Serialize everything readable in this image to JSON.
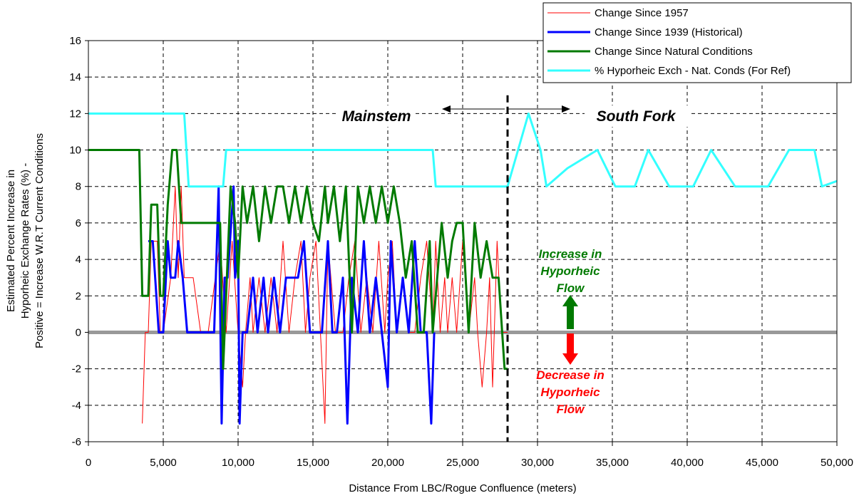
{
  "chart_data": {
    "type": "line",
    "xlabel": "Distance From LBC/Rogue Confluence (meters)",
    "ylabel_lines": [
      "Estimated Percent Increase in",
      "Hyporheic Exchange Rates (%) -",
      "Positive = Increase W.R.T Current Conditions"
    ],
    "xlim": [
      0,
      50000
    ],
    "ylim": [
      -6,
      16
    ],
    "x_ticks": [
      0,
      5000,
      10000,
      15000,
      20000,
      25000,
      30000,
      35000,
      40000,
      45000,
      50000
    ],
    "x_tick_labels": [
      "0",
      "5,000",
      "10,000",
      "15,000",
      "20,000",
      "25,000",
      "30,000",
      "35,000",
      "40,000",
      "45,000",
      "50,000"
    ],
    "y_ticks": [
      -6,
      -4,
      -2,
      0,
      2,
      4,
      6,
      8,
      10,
      12,
      14,
      16
    ],
    "y_tick_labels": [
      "-6",
      "-4",
      "-2",
      "0",
      "2",
      "4",
      "6",
      "8",
      "10",
      "12",
      "14",
      "16"
    ],
    "grid": true,
    "legend_position": "top-right",
    "zero_line_color": "#999999",
    "divider": {
      "x": 28000
    },
    "annotations": {
      "mainstem": "Mainstem",
      "south_fork": "South Fork",
      "increase": [
        "Increase in",
        "Hyporheic",
        "Flow"
      ],
      "decrease": [
        "Decrease in",
        "Hyporheic",
        "Flow"
      ],
      "increase_color": "#007a00",
      "decrease_color": "#ff0000"
    },
    "series": [
      {
        "name": "Change Since 1957",
        "color": "#ff0000",
        "width": 1,
        "x": [
          3600,
          3800,
          4000,
          4200,
          4600,
          4800,
          5000,
          5500,
          5800,
          6000,
          6200,
          6400,
          6700,
          7000,
          7500,
          7800,
          8000,
          8800,
          9200,
          9600,
          10000,
          10300,
          10500,
          10800,
          11000,
          11400,
          11800,
          12200,
          12600,
          13000,
          13400,
          13800,
          14200,
          14500,
          14800,
          15200,
          15500,
          15800,
          16000,
          16500,
          17000,
          17400,
          17800,
          18200,
          18600,
          19000,
          19400,
          19800,
          20000,
          20300,
          20600,
          21000,
          21400,
          21800,
          22200,
          22600,
          23000,
          23200,
          23500,
          23800,
          24000,
          24300,
          24600,
          25000,
          25400,
          25800,
          26000,
          26300,
          26600,
          26800,
          27000,
          27300,
          27600,
          28000
        ],
        "y": [
          -5,
          0,
          0,
          5,
          5,
          0,
          0,
          3,
          8,
          3,
          8,
          3,
          3,
          3,
          0,
          0,
          0,
          5,
          0,
          5,
          0,
          -3,
          0,
          3,
          0,
          3,
          0,
          3,
          0,
          5,
          0,
          3,
          5,
          0,
          3,
          5,
          0,
          -5,
          5,
          0,
          0,
          3,
          5,
          0,
          3,
          0,
          5,
          0,
          3,
          5,
          0,
          3,
          0,
          0,
          3,
          5,
          0,
          5,
          0,
          3,
          0,
          3,
          0,
          5,
          0,
          3,
          0,
          -3,
          0,
          3,
          -3,
          5,
          0,
          0
        ]
      },
      {
        "name": "Change Since 1939 (Historical)",
        "color": "#0000ff",
        "width": 3,
        "x": [
          4000,
          4300,
          4700,
          5000,
          5300,
          5500,
          5800,
          6000,
          6300,
          6600,
          7000,
          7500,
          8000,
          8400,
          8700,
          8900,
          9100,
          9300,
          9700,
          9800,
          10000,
          10100,
          10300,
          10600,
          11000,
          11300,
          11700,
          12000,
          12400,
          12800,
          13200,
          13600,
          14000,
          14400,
          14800,
          15200,
          15600,
          16000,
          16300,
          16600,
          17000,
          17300,
          17600,
          18000,
          18400,
          18800,
          19200,
          19600,
          20000,
          20200,
          20600,
          21000,
          21400,
          21800,
          22200,
          22600,
          22900,
          23100
        ],
        "y": [
          5,
          5,
          0,
          0,
          5,
          3,
          3,
          5,
          3,
          0,
          0,
          0,
          0,
          0,
          8,
          -5,
          3,
          3,
          8,
          3,
          5,
          -5,
          0,
          0,
          3,
          0,
          3,
          0,
          3,
          0,
          3,
          3,
          3,
          5,
          0,
          0,
          0,
          5,
          0,
          0,
          3,
          -5,
          3,
          0,
          5,
          0,
          3,
          0,
          -3,
          5,
          0,
          3,
          0,
          5,
          0,
          0,
          -5,
          0
        ]
      },
      {
        "name": "Change Since Natural Conditions",
        "color": "#007a00",
        "width": 3,
        "x": [
          0,
          3400,
          3600,
          4000,
          4200,
          4600,
          4800,
          5000,
          5300,
          5600,
          5900,
          6200,
          6400,
          6700,
          7000,
          7500,
          8000,
          8500,
          8800,
          9000,
          9500,
          9800,
          10000,
          10300,
          10600,
          11000,
          11400,
          11800,
          12200,
          12600,
          13000,
          13400,
          13800,
          14200,
          14600,
          15000,
          15400,
          15800,
          16000,
          16400,
          16800,
          17200,
          17600,
          18000,
          18400,
          18800,
          19200,
          19600,
          20000,
          20400,
          20800,
          21200,
          21600,
          22000,
          22400,
          22800,
          23000,
          23300,
          23600,
          24000,
          24300,
          24600,
          25000,
          25400,
          25800,
          26200,
          26600,
          27000,
          27400,
          27800,
          28000
        ],
        "y": [
          10,
          10,
          2,
          2,
          7,
          7,
          2,
          2,
          7,
          10,
          10,
          6,
          6,
          6,
          6,
          6,
          6,
          6,
          6,
          -2,
          8,
          6,
          3,
          8,
          6,
          8,
          5,
          8,
          6,
          8,
          8,
          6,
          8,
          6,
          8,
          6,
          5,
          8,
          6,
          8,
          5,
          8,
          0,
          8,
          6,
          8,
          6,
          8,
          6,
          8,
          6,
          3,
          5,
          0,
          0,
          5,
          0,
          3,
          6,
          3,
          5,
          6,
          6,
          0,
          6,
          3,
          5,
          3,
          3,
          -2,
          -2
        ]
      },
      {
        "name": "% Hyporheic Exch - Nat. Conds (For Ref)",
        "color": "#33ffff",
        "width": 3,
        "x": [
          0,
          6400,
          6700,
          7000,
          8000,
          9000,
          9200,
          10000,
          15000,
          20000,
          23000,
          23200,
          25000,
          28000,
          29400,
          30200,
          30600,
          32000,
          34000,
          35200,
          36500,
          37400,
          38800,
          40400,
          41600,
          43200,
          45400,
          46800,
          48500,
          49000,
          50000
        ],
        "y": [
          12,
          12,
          8,
          8,
          8,
          8,
          10,
          10,
          10,
          10,
          10,
          8,
          8,
          8,
          12,
          10,
          8,
          9,
          10,
          8,
          8,
          10,
          8,
          8,
          10,
          8,
          8,
          10,
          10,
          8,
          8.3
        ]
      }
    ]
  }
}
